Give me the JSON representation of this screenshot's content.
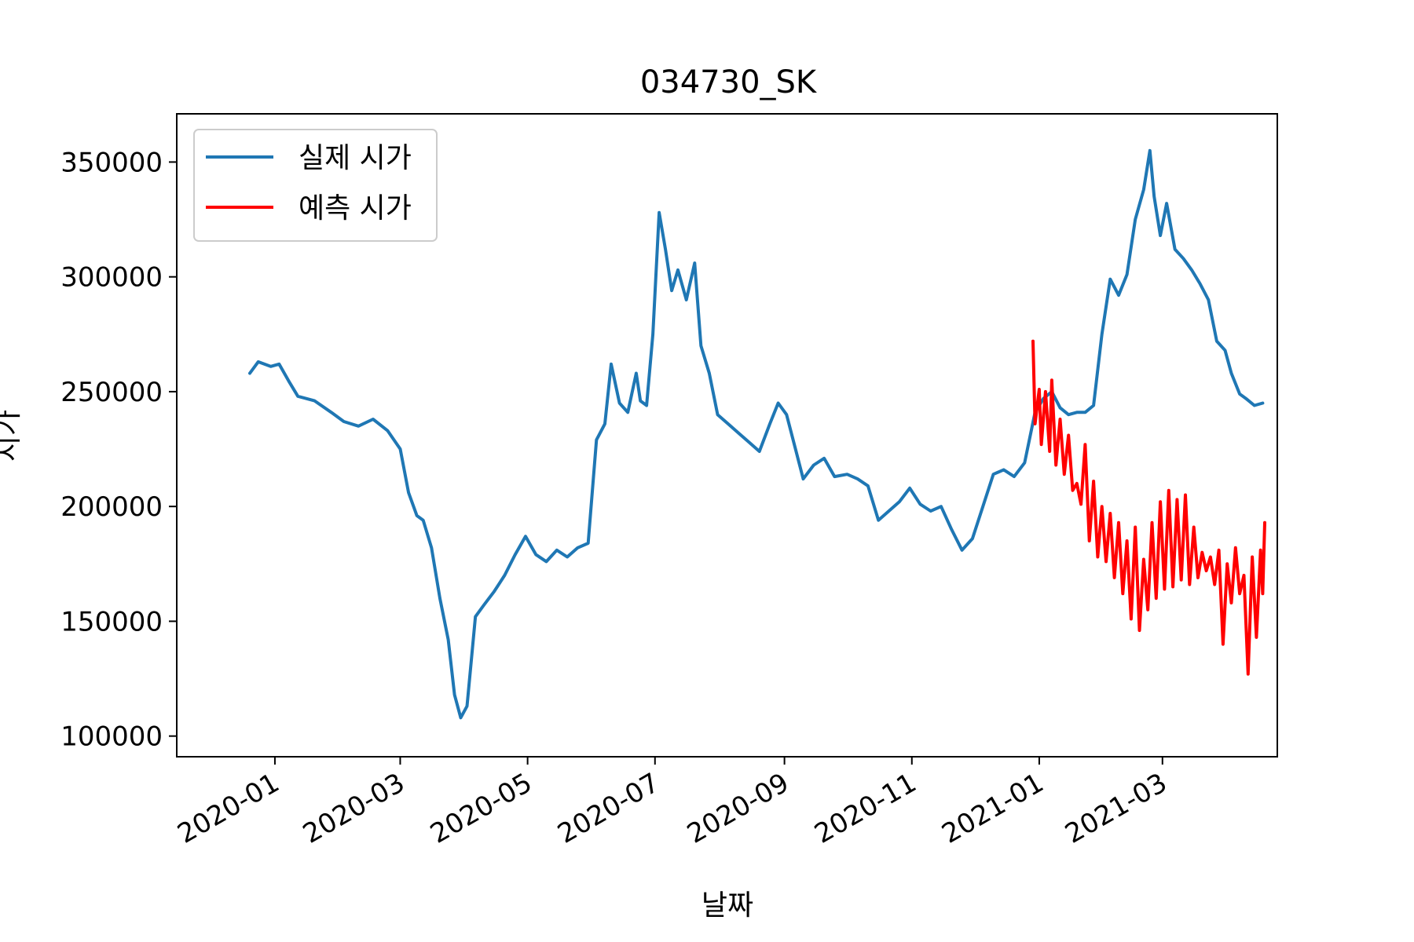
{
  "chart_data": {
    "type": "line",
    "title": "034730_SK",
    "xlabel": "날짜",
    "ylabel": "시가",
    "xlim": [
      "2019-11-15",
      "2021-04-25"
    ],
    "ylim": [
      91000,
      371000
    ],
    "grid": false,
    "legend_position": "top-left",
    "x_ticks": [
      "2020-01-01",
      "2020-03-01",
      "2020-05-01",
      "2020-07-01",
      "2020-09-01",
      "2020-11-01",
      "2021-01-01",
      "2021-03-01"
    ],
    "x_tick_labels": [
      "2020-01",
      "2020-03",
      "2020-05",
      "2020-07",
      "2020-09",
      "2020-11",
      "2021-01",
      "2021-03"
    ],
    "y_ticks": [
      100000,
      150000,
      200000,
      250000,
      300000,
      350000
    ],
    "y_tick_labels": [
      "100000",
      "150000",
      "200000",
      "250000",
      "300000",
      "350000"
    ],
    "series": [
      {
        "name": "실제 시가",
        "color": "#1f77b4",
        "points": [
          [
            "2019-12-20",
            258000
          ],
          [
            "2019-12-24",
            263000
          ],
          [
            "2019-12-30",
            261000
          ],
          [
            "2020-01-03",
            262000
          ],
          [
            "2020-01-08",
            254000
          ],
          [
            "2020-01-12",
            248000
          ],
          [
            "2020-01-20",
            246000
          ],
          [
            "2020-01-28",
            241000
          ],
          [
            "2020-02-03",
            237000
          ],
          [
            "2020-02-10",
            235000
          ],
          [
            "2020-02-17",
            238000
          ],
          [
            "2020-02-24",
            233000
          ],
          [
            "2020-03-01",
            225000
          ],
          [
            "2020-03-05",
            206000
          ],
          [
            "2020-03-09",
            196000
          ],
          [
            "2020-03-12",
            194000
          ],
          [
            "2020-03-16",
            182000
          ],
          [
            "2020-03-20",
            160000
          ],
          [
            "2020-03-24",
            142000
          ],
          [
            "2020-03-27",
            118000
          ],
          [
            "2020-03-30",
            108000
          ],
          [
            "2020-04-02",
            113000
          ],
          [
            "2020-04-06",
            152000
          ],
          [
            "2020-04-10",
            157000
          ],
          [
            "2020-04-15",
            163000
          ],
          [
            "2020-04-20",
            170000
          ],
          [
            "2020-04-25",
            179000
          ],
          [
            "2020-04-30",
            187000
          ],
          [
            "2020-05-05",
            179000
          ],
          [
            "2020-05-10",
            176000
          ],
          [
            "2020-05-15",
            181000
          ],
          [
            "2020-05-20",
            178000
          ],
          [
            "2020-05-25",
            182000
          ],
          [
            "2020-05-30",
            184000
          ],
          [
            "2020-06-03",
            229000
          ],
          [
            "2020-06-07",
            236000
          ],
          [
            "2020-06-10",
            262000
          ],
          [
            "2020-06-14",
            245000
          ],
          [
            "2020-06-18",
            241000
          ],
          [
            "2020-06-22",
            258000
          ],
          [
            "2020-06-24",
            246000
          ],
          [
            "2020-06-27",
            244000
          ],
          [
            "2020-06-30",
            275000
          ],
          [
            "2020-07-03",
            328000
          ],
          [
            "2020-07-06",
            312000
          ],
          [
            "2020-07-09",
            294000
          ],
          [
            "2020-07-12",
            303000
          ],
          [
            "2020-07-16",
            290000
          ],
          [
            "2020-07-20",
            306000
          ],
          [
            "2020-07-23",
            270000
          ],
          [
            "2020-07-27",
            258000
          ],
          [
            "2020-07-31",
            240000
          ],
          [
            "2020-08-05",
            236000
          ],
          [
            "2020-08-10",
            232000
          ],
          [
            "2020-08-15",
            228000
          ],
          [
            "2020-08-20",
            224000
          ],
          [
            "2020-08-25",
            236000
          ],
          [
            "2020-08-29",
            245000
          ],
          [
            "2020-09-02",
            240000
          ],
          [
            "2020-09-06",
            226000
          ],
          [
            "2020-09-10",
            212000
          ],
          [
            "2020-09-15",
            218000
          ],
          [
            "2020-09-20",
            221000
          ],
          [
            "2020-09-25",
            213000
          ],
          [
            "2020-10-01",
            214000
          ],
          [
            "2020-10-06",
            212000
          ],
          [
            "2020-10-11",
            209000
          ],
          [
            "2020-10-16",
            194000
          ],
          [
            "2020-10-21",
            198000
          ],
          [
            "2020-10-26",
            202000
          ],
          [
            "2020-10-31",
            208000
          ],
          [
            "2020-11-05",
            201000
          ],
          [
            "2020-11-10",
            198000
          ],
          [
            "2020-11-15",
            200000
          ],
          [
            "2020-11-20",
            190000
          ],
          [
            "2020-11-25",
            181000
          ],
          [
            "2020-11-30",
            186000
          ],
          [
            "2020-12-05",
            200000
          ],
          [
            "2020-12-10",
            214000
          ],
          [
            "2020-12-15",
            216000
          ],
          [
            "2020-12-20",
            213000
          ],
          [
            "2020-12-25",
            219000
          ],
          [
            "2020-12-30",
            241000
          ],
          [
            "2021-01-03",
            247000
          ],
          [
            "2021-01-07",
            250000
          ],
          [
            "2021-01-11",
            243000
          ],
          [
            "2021-01-15",
            240000
          ],
          [
            "2021-01-19",
            241000
          ],
          [
            "2021-01-23",
            241000
          ],
          [
            "2021-01-27",
            244000
          ],
          [
            "2021-01-31",
            275000
          ],
          [
            "2021-02-04",
            299000
          ],
          [
            "2021-02-08",
            292000
          ],
          [
            "2021-02-12",
            301000
          ],
          [
            "2021-02-16",
            325000
          ],
          [
            "2021-02-20",
            338000
          ],
          [
            "2021-02-23",
            355000
          ],
          [
            "2021-02-25",
            335000
          ],
          [
            "2021-02-28",
            318000
          ],
          [
            "2021-03-03",
            332000
          ],
          [
            "2021-03-07",
            312000
          ],
          [
            "2021-03-11",
            308000
          ],
          [
            "2021-03-15",
            303000
          ],
          [
            "2021-03-19",
            297000
          ],
          [
            "2021-03-23",
            290000
          ],
          [
            "2021-03-27",
            272000
          ],
          [
            "2021-03-31",
            268000
          ],
          [
            "2021-04-03",
            258000
          ],
          [
            "2021-04-07",
            249000
          ],
          [
            "2021-04-10",
            247000
          ],
          [
            "2021-04-14",
            244000
          ],
          [
            "2021-04-18",
            245000
          ]
        ]
      },
      {
        "name": "예측 시가",
        "color": "#ff0000",
        "points": [
          [
            "2020-12-29",
            272000
          ],
          [
            "2020-12-30",
            236000
          ],
          [
            "2021-01-01",
            251000
          ],
          [
            "2021-01-02",
            227000
          ],
          [
            "2021-01-04",
            250000
          ],
          [
            "2021-01-06",
            224000
          ],
          [
            "2021-01-07",
            255000
          ],
          [
            "2021-01-09",
            218000
          ],
          [
            "2021-01-11",
            238000
          ],
          [
            "2021-01-13",
            214000
          ],
          [
            "2021-01-15",
            231000
          ],
          [
            "2021-01-17",
            207000
          ],
          [
            "2021-01-19",
            210000
          ],
          [
            "2021-01-21",
            201000
          ],
          [
            "2021-01-23",
            227000
          ],
          [
            "2021-01-25",
            185000
          ],
          [
            "2021-01-27",
            211000
          ],
          [
            "2021-01-29",
            178000
          ],
          [
            "2021-01-31",
            200000
          ],
          [
            "2021-02-02",
            176000
          ],
          [
            "2021-02-04",
            197000
          ],
          [
            "2021-02-06",
            169000
          ],
          [
            "2021-02-08",
            193000
          ],
          [
            "2021-02-10",
            162000
          ],
          [
            "2021-02-12",
            185000
          ],
          [
            "2021-02-14",
            151000
          ],
          [
            "2021-02-16",
            191000
          ],
          [
            "2021-02-18",
            146000
          ],
          [
            "2021-02-20",
            177000
          ],
          [
            "2021-02-22",
            155000
          ],
          [
            "2021-02-24",
            193000
          ],
          [
            "2021-02-26",
            160000
          ],
          [
            "2021-02-28",
            202000
          ],
          [
            "2021-03-02",
            164000
          ],
          [
            "2021-03-04",
            207000
          ],
          [
            "2021-03-06",
            165000
          ],
          [
            "2021-03-08",
            203000
          ],
          [
            "2021-03-10",
            168000
          ],
          [
            "2021-03-12",
            205000
          ],
          [
            "2021-03-14",
            166000
          ],
          [
            "2021-03-16",
            191000
          ],
          [
            "2021-03-18",
            169000
          ],
          [
            "2021-03-20",
            180000
          ],
          [
            "2021-03-22",
            172000
          ],
          [
            "2021-03-24",
            178000
          ],
          [
            "2021-03-26",
            166000
          ],
          [
            "2021-03-28",
            181000
          ],
          [
            "2021-03-30",
            140000
          ],
          [
            "2021-04-01",
            175000
          ],
          [
            "2021-04-03",
            158000
          ],
          [
            "2021-04-05",
            182000
          ],
          [
            "2021-04-07",
            162000
          ],
          [
            "2021-04-09",
            170000
          ],
          [
            "2021-04-11",
            127000
          ],
          [
            "2021-04-13",
            178000
          ],
          [
            "2021-04-15",
            143000
          ],
          [
            "2021-04-17",
            181000
          ],
          [
            "2021-04-18",
            162000
          ],
          [
            "2021-04-19",
            193000
          ]
        ]
      }
    ]
  }
}
